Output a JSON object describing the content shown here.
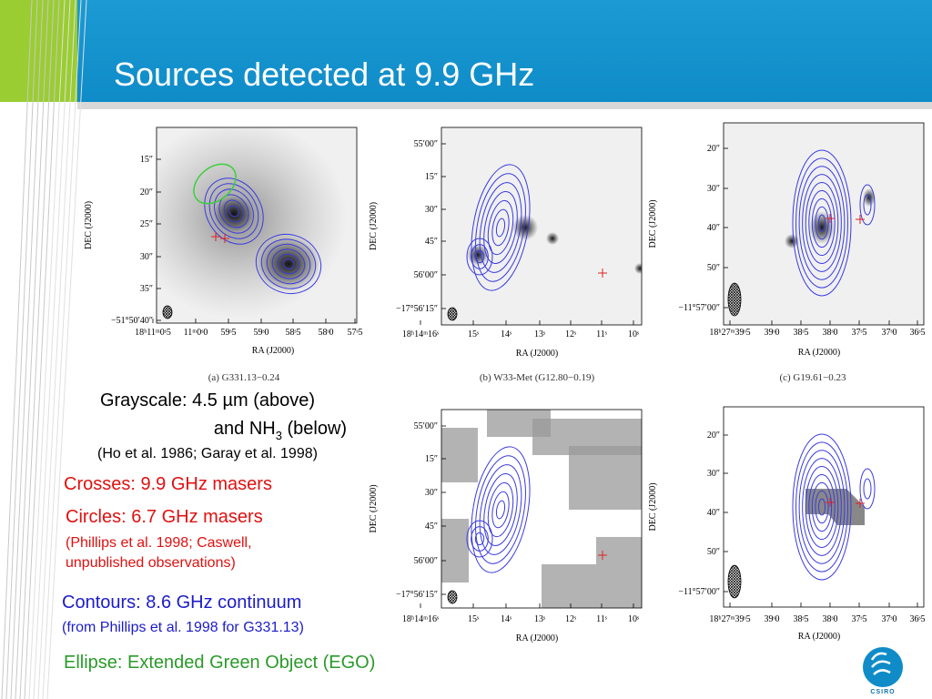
{
  "header": {
    "title": "Sources detected at 9.9 GHz"
  },
  "panels": [
    {
      "ylabel": "DEC (J2000)",
      "xlabel": "RA (J2000)",
      "caption": "(a) G331.13−0.24",
      "yticks": [
        "15″",
        "20″",
        "25″",
        "30″",
        "35″",
        "−51°50′40″"
      ],
      "xticks": [
        "18ʰ11ᵐ0ˢ5",
        "11ᵐ0ˢ0",
        "59ˢ5",
        "59ˢ0",
        "58ˢ5",
        "58ˢ0",
        "57ˢ5"
      ]
    },
    {
      "ylabel": "DEC (J2000)",
      "xlabel": "RA (J2000)",
      "caption": "(b) W33-Met (G12.80−0.19)",
      "yticks": [
        "55′00″",
        "15″",
        "30″",
        "45″",
        "56′00″",
        "−17°56′15″"
      ],
      "xticks": [
        "18ʰ14ᵐ16ˢ",
        "15ˢ",
        "14ˢ",
        "13ˢ",
        "12ˢ",
        "11ˢ",
        "10ˢ"
      ]
    },
    {
      "ylabel": "DEC (J2000)",
      "xlabel": "RA (J2000)",
      "caption": "(c) G19.61−0.23",
      "yticks": [
        "20″",
        "30″",
        "40″",
        "50″",
        "−11°57′00″"
      ],
      "xticks": [
        "18ʰ27ᵐ39ˢ5",
        "39ˢ0",
        "38ˢ5",
        "38ˢ0",
        "37ˢ5",
        "37ˢ0",
        "36ˢ5"
      ]
    },
    {
      "ylabel": "DEC (J2000)",
      "xlabel": "RA (J2000)",
      "yticks": [
        "55′00″",
        "15″",
        "30″",
        "45″",
        "56′00″",
        "−17°56′15″"
      ],
      "xticks": [
        "18ʰ14ᵐ16ˢ",
        "15ˢ",
        "14ˢ",
        "13ˢ",
        "12ˢ",
        "11ˢ",
        "10ˢ"
      ]
    },
    {
      "ylabel": "DEC (J2000)",
      "xlabel": "RA (J2000)",
      "yticks": [
        "20″",
        "30″",
        "40″",
        "50″",
        "−11°57′00″"
      ],
      "xticks": [
        "18ʰ27ᵐ39ˢ5",
        "39ˢ0",
        "38ˢ5",
        "38ˢ0",
        "37ˢ5",
        "37ˢ0",
        "36ˢ5"
      ]
    }
  ],
  "notes": {
    "grayscale": "Grayscale: 4.5 µm (above)",
    "nh3": [
      "and NH",
      "3",
      " (below)"
    ],
    "refs": "(Ho et al. 1986; Garay et al. 1998)",
    "crosses": "Crosses: 9.9 GHz masers",
    "circles": "Circles: 6.7 GHz masers",
    "circles_refs": [
      "(Phillips et al. 1998; Caswell,",
      "unpublished observations)"
    ],
    "contours": "Contours: 8.6 GHz continuum",
    "contours_ref": "(from Phillips et al. 1998 for G331.13)",
    "ellipse": "Ellipse: Extended Green Object (EGO)"
  },
  "logo": "CSIRO"
}
